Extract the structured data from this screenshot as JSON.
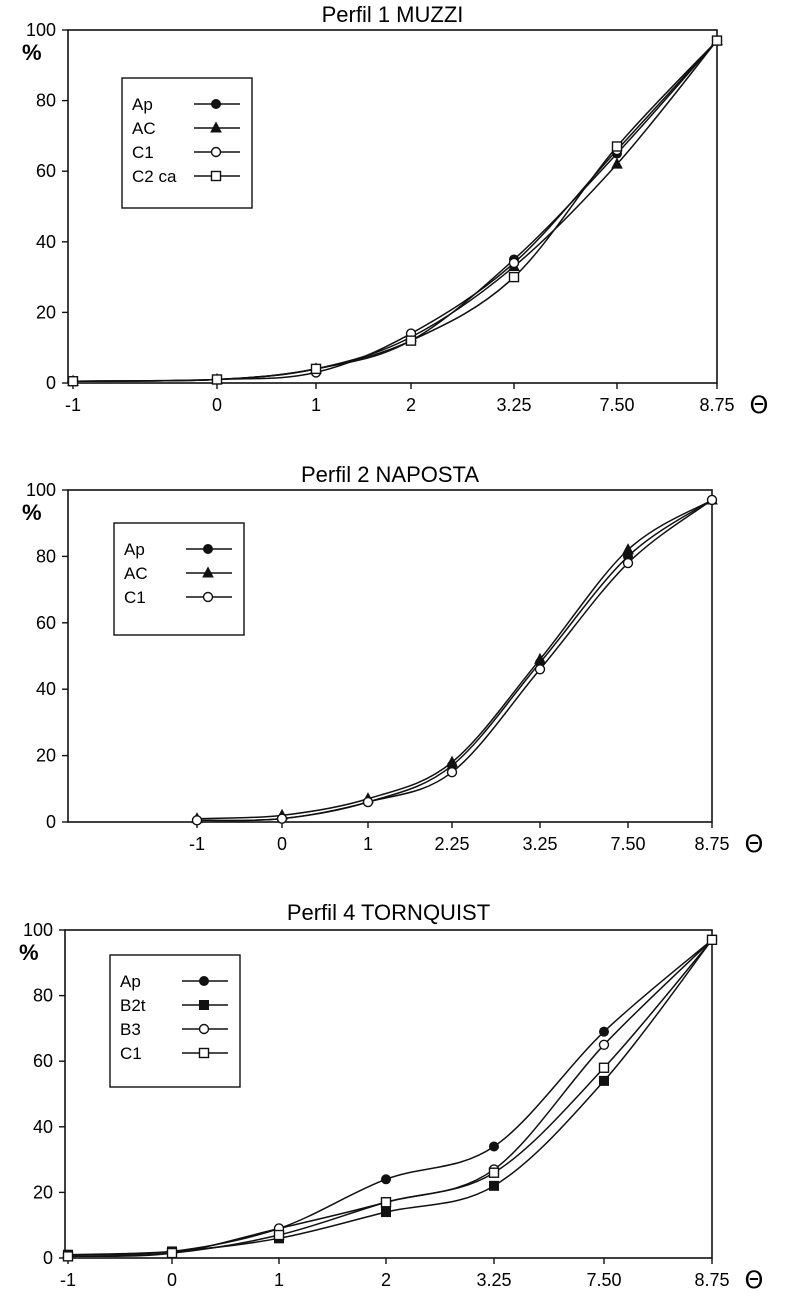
{
  "chart_data": [
    {
      "type": "line",
      "title": "Perfil 1 MUZZI",
      "ylabel": "%",
      "xlabel": "Θ",
      "categories": [
        "-1",
        "0",
        "1",
        "2",
        "3.25",
        "7.50",
        "8.75"
      ],
      "yticks": [
        "0",
        "20",
        "40",
        "60",
        "80",
        "100"
      ],
      "ylim": [
        0,
        100
      ],
      "legend_position": "top-left",
      "series": [
        {
          "name": "Ap",
          "marker": "filled-circle",
          "values": [
            0.5,
            1,
            4,
            12,
            35,
            65,
            97
          ]
        },
        {
          "name": "AC",
          "marker": "filled-triangle",
          "values": [
            0.5,
            1,
            4,
            13,
            33,
            62,
            97
          ]
        },
        {
          "name": "C1",
          "marker": "open-circle",
          "values": [
            0.5,
            1,
            3,
            14,
            34,
            66,
            97
          ]
        },
        {
          "name": "C2 ca",
          "marker": "open-square",
          "values": [
            0.5,
            1,
            4,
            12,
            30,
            67,
            97
          ]
        }
      ]
    },
    {
      "type": "line",
      "title": "Perfil 2 NAPOSTA",
      "ylabel": "%",
      "xlabel": "Θ",
      "categories": [
        "-1",
        "0",
        "1",
        "2.25",
        "3.25",
        "7.50",
        "8.75"
      ],
      "yticks": [
        "0",
        "20",
        "40",
        "60",
        "80",
        "100"
      ],
      "ylim": [
        0,
        100
      ],
      "legend_position": "top-left",
      "series": [
        {
          "name": "Ap",
          "marker": "filled-circle",
          "values": [
            0.5,
            1,
            6,
            17,
            48,
            80,
            97
          ]
        },
        {
          "name": "AC",
          "marker": "filled-triangle",
          "values": [
            1,
            2,
            7,
            18,
            49,
            82,
            97
          ]
        },
        {
          "name": "C1",
          "marker": "open-circle",
          "values": [
            0.5,
            1,
            6,
            15,
            46,
            78,
            97
          ]
        }
      ]
    },
    {
      "type": "line",
      "title": "Perfil 4 TORNQUIST",
      "ylabel": "%",
      "xlabel": "Θ",
      "categories": [
        "-1",
        "0",
        "1",
        "2",
        "3.25",
        "7.50",
        "8.75"
      ],
      "yticks": [
        "0",
        "20",
        "40",
        "60",
        "80",
        "100"
      ],
      "ylim": [
        0,
        100
      ],
      "legend_position": "top-left",
      "series": [
        {
          "name": "Ap",
          "marker": "filled-circle",
          "values": [
            1,
            2,
            9,
            24,
            34,
            69,
            97
          ]
        },
        {
          "name": "B2t",
          "marker": "filled-square",
          "values": [
            1,
            2,
            6,
            14,
            22,
            54,
            97
          ]
        },
        {
          "name": "B3",
          "marker": "open-circle",
          "values": [
            0.5,
            1.5,
            9,
            17,
            27,
            65,
            97
          ]
        },
        {
          "name": "C1",
          "marker": "open-square",
          "values": [
            0.5,
            1.5,
            7,
            17,
            26,
            58,
            97
          ]
        }
      ]
    }
  ]
}
